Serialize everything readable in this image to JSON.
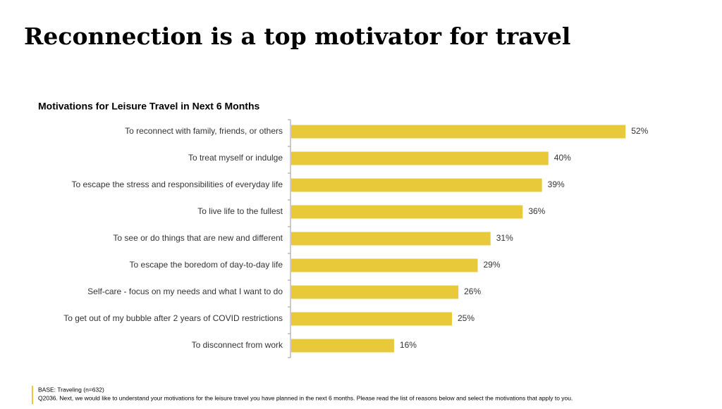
{
  "title": "Reconnection is a top motivator for travel",
  "chart_data": {
    "type": "bar",
    "orientation": "horizontal",
    "title": "Motivations for Leisure Travel in Next 6 Months",
    "categories": [
      "To reconnect with family, friends, or others",
      "To treat myself or indulge",
      "To escape the stress and responsibilities of everyday life",
      "To live life to the fullest",
      "To see or do things that are new and different",
      "To escape the boredom of day-to-day life",
      "Self-care - focus on my needs and what I want to do",
      "To get out of my bubble after 2 years of COVID restrictions",
      "To disconnect from work"
    ],
    "values": [
      52,
      40,
      39,
      36,
      31,
      29,
      26,
      25,
      16
    ],
    "value_labels": [
      "52%",
      "40%",
      "39%",
      "36%",
      "31%",
      "29%",
      "26%",
      "25%",
      "16%"
    ],
    "color": "#e8c93a"
  },
  "footnotes": [
    "BASE: Traveling (n=632)",
    "Q2036. Next, we would like to understand your motivations for the leisure travel you have planned in the next 6 months. Please read the list of reasons below and select the motivations that apply to you."
  ]
}
